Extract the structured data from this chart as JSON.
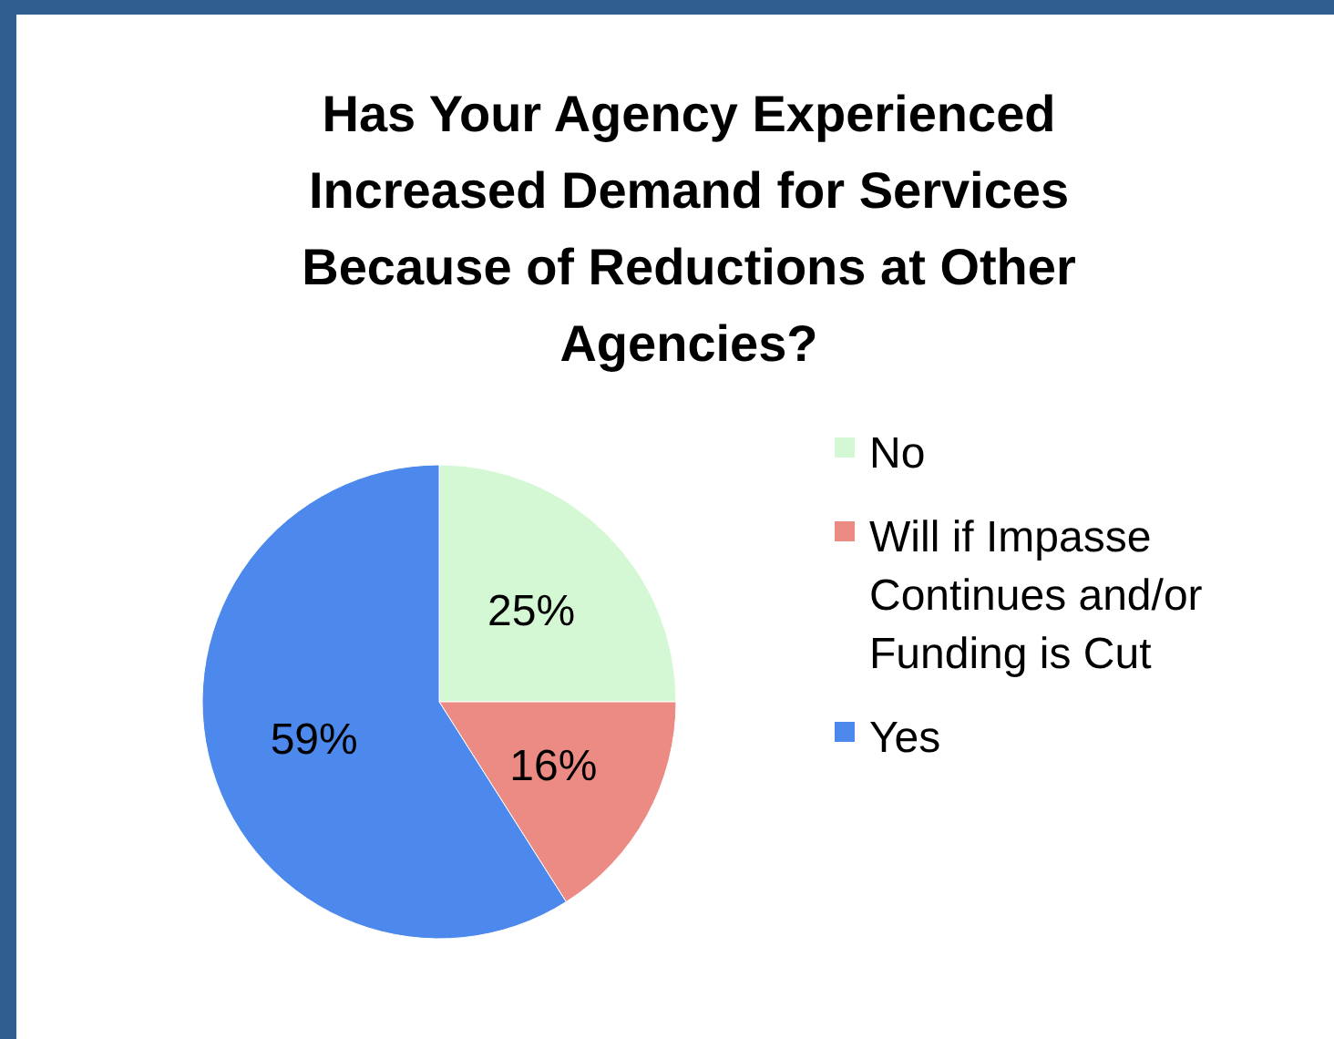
{
  "chart_data": {
    "type": "pie",
    "title": "Has Your Agency Experienced Increased Demand for Services Because of Reductions at Other Agencies?",
    "categories": [
      "No",
      "Will if Impasse Continues and/or Funding is Cut",
      "Yes"
    ],
    "values": [
      25,
      16,
      59
    ],
    "colors": [
      "#d4f7d4",
      "#ec8a84",
      "#4d88ec"
    ],
    "value_labels": [
      "25%",
      "16%",
      "59%"
    ],
    "legend": "right"
  }
}
